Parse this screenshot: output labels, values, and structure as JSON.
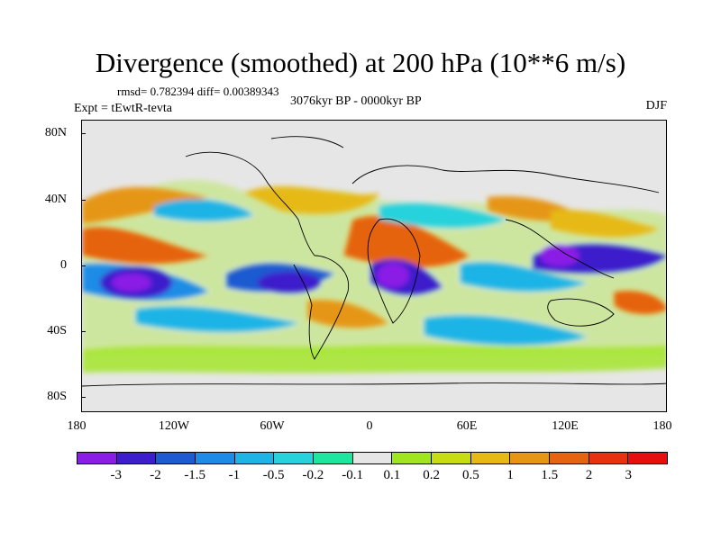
{
  "title": "Divergence (smoothed) at 200 hPa (10**6 m/s)",
  "stats": "rmsd= 0.782394 diff= 0.00389343",
  "expt": "Expt = tEwtR-tevta",
  "period": "3076kyr BP - 0000kyr BP",
  "season": "DJF",
  "y_ticks": [
    "80N",
    "40N",
    "0",
    "40S",
    "80S"
  ],
  "x_ticks": [
    "180",
    "120W",
    "60W",
    "0",
    "60E",
    "120E",
    "180"
  ],
  "colorbar": {
    "colors": [
      "#8a1ee6",
      "#3c1ecc",
      "#1e5ad2",
      "#1e8ce6",
      "#1eb4e6",
      "#28d2dc",
      "#1ee6a0",
      "#e6e6e6",
      "#a0e61e",
      "#c8dc14",
      "#e6b914",
      "#e69614",
      "#e6640f",
      "#e6320f",
      "#e60f0f"
    ],
    "labels": [
      "-3",
      "-2",
      "-1.5",
      "-1",
      "-0.5",
      "-0.2",
      "-0.1",
      "0.1",
      "0.2",
      "0.5",
      "1",
      "1.5",
      "2",
      "3"
    ]
  }
}
